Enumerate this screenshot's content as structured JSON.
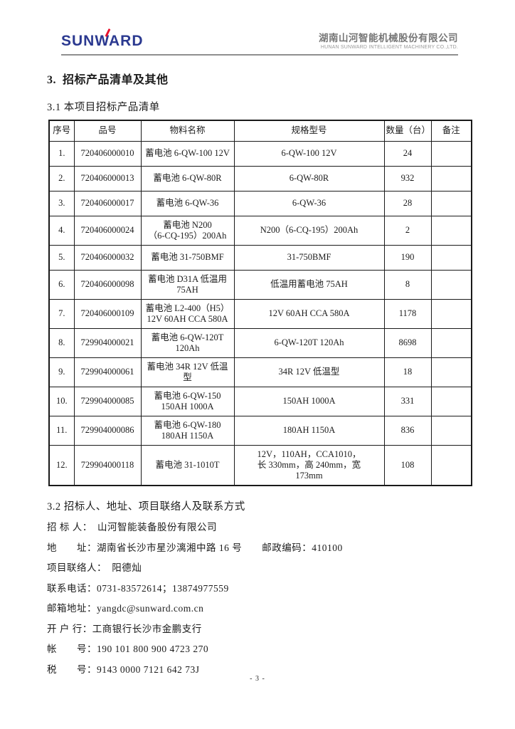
{
  "header": {
    "logo_text": "SUNWARD",
    "logo_color": "#2b3990",
    "logo_accent_color": "#e8112d",
    "company_cn": "湖南山河智能机械股份有限公司",
    "company_en": "HUNAN SUNWARD INTELLIGENT MACHINERY CO.,LTD."
  },
  "headings": {
    "section": "3.  招标产品清单及其他",
    "subsection1": "3.1 本项目招标产品清单",
    "subsection2": "3.2 招标人、地址、项目联络人及联系方式"
  },
  "table": {
    "columns": [
      "序号",
      "品号",
      "物料名称",
      "规格型号",
      "数量（台）",
      "备注"
    ],
    "rows": [
      {
        "no": "1.",
        "item_no": "720406000010",
        "material": "蓄电池 6-QW-100  12V",
        "spec": "6-QW-100  12V",
        "qty": "24",
        "remark": ""
      },
      {
        "no": "2.",
        "item_no": "720406000013",
        "material": "蓄电池 6-QW-80R",
        "spec": "6-QW-80R",
        "qty": "932",
        "remark": ""
      },
      {
        "no": "3.",
        "item_no": "720406000017",
        "material": "蓄电池 6-QW-36",
        "spec": "6-QW-36",
        "qty": "28",
        "remark": ""
      },
      {
        "no": "4.",
        "item_no": "720406000024",
        "material": "蓄电池 N200\n（6-CQ-195）200Ah",
        "spec": "N200（6-CQ-195）200Ah",
        "qty": "2",
        "remark": ""
      },
      {
        "no": "5.",
        "item_no": "720406000032",
        "material": "蓄电池 31-750BMF",
        "spec": "31-750BMF",
        "qty": "190",
        "remark": ""
      },
      {
        "no": "6.",
        "item_no": "720406000098",
        "material": "蓄电池 D31A 低温用\n75AH",
        "spec": "低温用蓄电池 75AH",
        "qty": "8",
        "remark": ""
      },
      {
        "no": "7.",
        "item_no": "720406000109",
        "material": "蓄电池 L2-400（H5）\n12V 60AH CCA 580A",
        "spec": "12V  60AH  CCA  580A",
        "qty": "1178",
        "remark": ""
      },
      {
        "no": "8.",
        "item_no": "729904000021",
        "material": "蓄电池 6-QW-120T\n120Ah",
        "spec": "6-QW-120T  120Ah",
        "qty": "8698",
        "remark": ""
      },
      {
        "no": "9.",
        "item_no": "729904000061",
        "material": "蓄电池 34R 12V 低温\n型",
        "spec": "34R  12V  低温型",
        "qty": "18",
        "remark": ""
      },
      {
        "no": "10.",
        "item_no": "729904000085",
        "material": "蓄电池 6-QW-150\n150AH  1000A",
        "spec": "150AH  1000A",
        "qty": "331",
        "remark": ""
      },
      {
        "no": "11.",
        "item_no": "729904000086",
        "material": "蓄电池 6-QW-180\n180AH  1150A",
        "spec": "180AH  1150A",
        "qty": "836",
        "remark": ""
      },
      {
        "no": "12.",
        "item_no": "729904000118",
        "material": "蓄电池 31-1010T",
        "spec": "12V，110AH，CCA1010，\n长 330mm，高 240mm，宽\n173mm",
        "qty": "108",
        "remark": ""
      }
    ]
  },
  "contacts": [
    {
      "label": "招 标 人：",
      "value": "　山河智能装备股份有限公司"
    },
    {
      "label": "地　　址：",
      "value": "湖南省长沙市星沙漓湘中路 16 号　　邮政编码：410100"
    },
    {
      "label": "项目联络人：",
      "value": "　阳德灿"
    },
    {
      "label": "联系电话：",
      "value": "0731-83572614；13874977559"
    },
    {
      "label": "邮箱地址：",
      "value": "yangdc@sunward.com.cn"
    },
    {
      "label": "开 户 行：",
      "value": "工商银行长沙市金鹏支行"
    },
    {
      "label": "帐　　号：",
      "value": "190 101 800 900 4723 270"
    },
    {
      "label": "税　　号：",
      "value": "9143 0000 7121 642 73J"
    }
  ],
  "footer": {
    "page_number": "- 3 -"
  }
}
